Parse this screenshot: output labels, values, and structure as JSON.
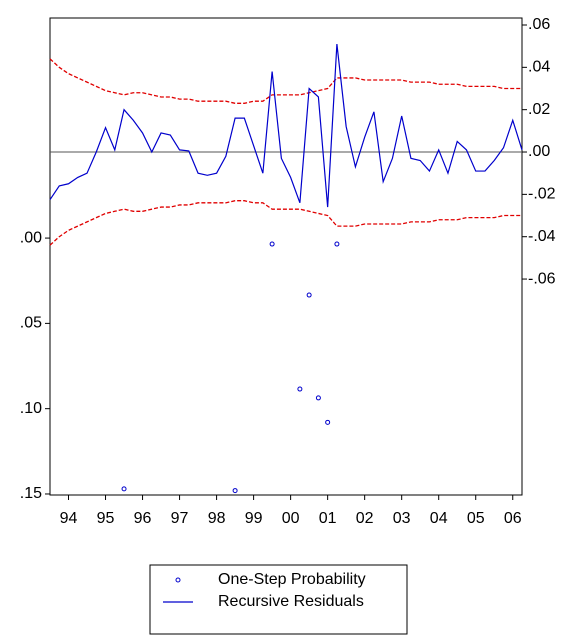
{
  "chart_data": {
    "type": "line",
    "x": [
      1994,
      1994.25,
      1994.5,
      1994.75,
      1995,
      1995.25,
      1995.5,
      1995.75,
      1996,
      1996.25,
      1996.5,
      1996.75,
      1997,
      1997.25,
      1997.5,
      1997.75,
      1998,
      1998.25,
      1998.5,
      1998.75,
      1999,
      1999.25,
      1999.5,
      1999.75,
      2000,
      2000.25,
      2000.5,
      2000.75,
      2001,
      2001.25,
      2001.5,
      2001.75,
      2002,
      2002.25,
      2002.5,
      2002.75,
      2003,
      2003.25,
      2003.5,
      2003.75,
      2004,
      2004.25,
      2004.5,
      2004.75,
      2005,
      2005.25,
      2005.5,
      2005.75,
      2006,
      2006.25,
      2006.5,
      2006.75
    ],
    "xlim": [
      1994,
      2006.75
    ],
    "xticks": [
      {
        "value": 1994.5,
        "label": "94"
      },
      {
        "value": 1995.5,
        "label": "95"
      },
      {
        "value": 1996.5,
        "label": "96"
      },
      {
        "value": 1997.5,
        "label": "97"
      },
      {
        "value": 1998.5,
        "label": "98"
      },
      {
        "value": 1999.5,
        "label": "99"
      },
      {
        "value": 2000.5,
        "label": "00"
      },
      {
        "value": 2001.5,
        "label": "01"
      },
      {
        "value": 2002.5,
        "label": "02"
      },
      {
        "value": 2003.5,
        "label": "03"
      },
      {
        "value": 2004.5,
        "label": "04"
      },
      {
        "value": 2005.5,
        "label": "05"
      },
      {
        "value": 2006.5,
        "label": "06"
      }
    ],
    "ylim": [
      0.1506,
      -0.129
    ],
    "yticks": [
      {
        "value": 0,
        "label": ".00"
      },
      {
        "value": 0.05,
        "label": ".05"
      },
      {
        "value": 0.1,
        "label": ".10"
      },
      {
        "value": 0.15,
        "label": ".15"
      }
    ],
    "y2lim": [
      -0.162,
      0.0633
    ],
    "y2ticks": [
      {
        "value": -0.06,
        "label": "-.06"
      },
      {
        "value": -0.04,
        "label": "-.04"
      },
      {
        "value": -0.02,
        "label": "-.02"
      },
      {
        "value": 0,
        "label": ".00"
      },
      {
        "value": 0.02,
        "label": ".02"
      },
      {
        "value": 0.04,
        "label": ".04"
      },
      {
        "value": 0.06,
        "label": ".06"
      }
    ],
    "zero_line": true,
    "series": [
      {
        "name": "One-Step Probability",
        "color": "#0000cc",
        "marker": "circle",
        "axis": "y",
        "values": [
          null,
          null,
          null,
          null,
          null,
          null,
          null,
          null,
          0.147,
          null,
          null,
          null,
          null,
          null,
          null,
          null,
          null,
          null,
          null,
          null,
          0.148,
          null,
          null,
          null,
          0.0035,
          null,
          null,
          0.0885,
          0.0334,
          0.0937,
          0.108,
          0.0035,
          null,
          null,
          null,
          null,
          null,
          null,
          null,
          null,
          null,
          null,
          null,
          null,
          null,
          null,
          null,
          null,
          null,
          null,
          null,
          null
        ]
      },
      {
        "name": "Recursive Residuals",
        "color": "#0000cc",
        "axis": "y2",
        "values": [
          -0.0225,
          -0.016,
          -0.015,
          -0.012,
          -0.01,
          0.0,
          0.0115,
          0.001,
          0.02,
          0.015,
          0.009,
          0.0,
          0.009,
          0.008,
          0.001,
          0.0005,
          -0.01,
          -0.011,
          -0.01,
          -0.002,
          0.016,
          0.016,
          0.003,
          -0.01,
          0.038,
          -0.003,
          -0.012,
          -0.024,
          0.03,
          0.026,
          -0.026,
          0.051,
          0.012,
          -0.007,
          0.007,
          0.019,
          -0.014,
          -0.003,
          0.017,
          -0.003,
          -0.004,
          -0.009,
          0.001,
          -0.01,
          0.005,
          0.001,
          -0.009,
          -0.009,
          -0.004,
          0.002,
          0.015,
          0.001
        ]
      }
    ],
    "bands": {
      "color": "#e00000",
      "axis": "y2",
      "upper": [
        0.044,
        0.04,
        0.037,
        0.035,
        0.033,
        0.031,
        0.029,
        0.028,
        0.027,
        0.028,
        0.028,
        0.027,
        0.026,
        0.026,
        0.025,
        0.025,
        0.024,
        0.024,
        0.024,
        0.024,
        0.023,
        0.023,
        0.024,
        0.024,
        0.027,
        0.027,
        0.027,
        0.027,
        0.028,
        0.029,
        0.03,
        0.035,
        0.035,
        0.035,
        0.034,
        0.034,
        0.034,
        0.034,
        0.034,
        0.033,
        0.033,
        0.033,
        0.032,
        0.032,
        0.032,
        0.031,
        0.031,
        0.031,
        0.031,
        0.03,
        0.03,
        0.03
      ],
      "lower": [
        -0.044,
        -0.04,
        -0.037,
        -0.035,
        -0.033,
        -0.031,
        -0.029,
        -0.028,
        -0.027,
        -0.028,
        -0.028,
        -0.027,
        -0.026,
        -0.026,
        -0.025,
        -0.025,
        -0.024,
        -0.024,
        -0.024,
        -0.024,
        -0.023,
        -0.023,
        -0.024,
        -0.024,
        -0.027,
        -0.027,
        -0.027,
        -0.027,
        -0.028,
        -0.029,
        -0.03,
        -0.035,
        -0.035,
        -0.035,
        -0.034,
        -0.034,
        -0.034,
        -0.034,
        -0.034,
        -0.033,
        -0.033,
        -0.033,
        -0.032,
        -0.032,
        -0.032,
        -0.031,
        -0.031,
        -0.031,
        -0.031,
        -0.03,
        -0.03,
        -0.03
      ]
    }
  }
}
